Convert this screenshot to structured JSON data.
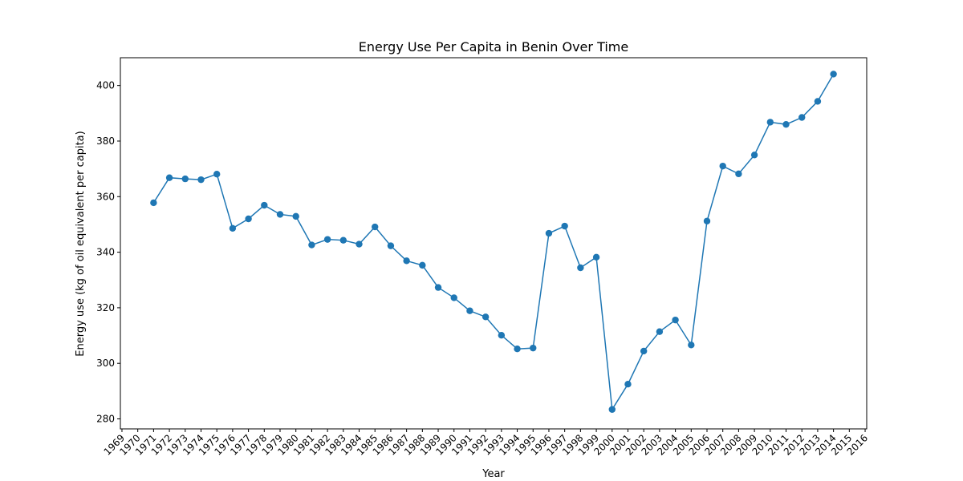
{
  "chart_data": {
    "type": "line",
    "title": "Energy Use Per Capita in Benin Over Time",
    "xlabel": "Year",
    "ylabel": "Energy use (kg of oil equivalent per capita)",
    "xlim": [
      1968.9,
      2016.1
    ],
    "ylim": [
      276.4,
      410.0
    ],
    "x_ticks": [
      1969,
      1970,
      1971,
      1972,
      1973,
      1974,
      1975,
      1976,
      1977,
      1978,
      1979,
      1980,
      1981,
      1982,
      1983,
      1984,
      1985,
      1986,
      1987,
      1988,
      1989,
      1990,
      1991,
      1992,
      1993,
      1994,
      1995,
      1996,
      1997,
      1998,
      1999,
      2000,
      2001,
      2002,
      2003,
      2004,
      2005,
      2006,
      2007,
      2008,
      2009,
      2010,
      2011,
      2012,
      2013,
      2014,
      2015,
      2016
    ],
    "y_ticks": [
      280,
      300,
      320,
      340,
      360,
      380,
      400
    ],
    "grid": false,
    "marker": "circle",
    "color": "#1f77b4",
    "series": [
      {
        "x": [
          1971,
          1972,
          1973,
          1974,
          1975,
          1976,
          1977,
          1978,
          1979,
          1980,
          1981,
          1982,
          1983,
          1984,
          1985,
          1986,
          1987,
          1988,
          1989,
          1990,
          1991,
          1992,
          1993,
          1994,
          1995,
          1996,
          1997,
          1998,
          1999,
          2000,
          2001,
          2002,
          2003,
          2004,
          2005,
          2006,
          2007,
          2008,
          2009,
          2010,
          2011,
          2012,
          2013,
          2014
        ],
        "values": [
          357.8,
          366.8,
          366.4,
          366.1,
          368.1,
          348.6,
          352.0,
          356.9,
          353.6,
          352.9,
          342.6,
          344.6,
          344.3,
          342.9,
          349.1,
          342.3,
          336.9,
          335.3,
          327.3,
          323.6,
          318.9,
          316.7,
          310.1,
          305.2,
          305.5,
          346.8,
          349.4,
          334.4,
          338.2,
          283.4,
          292.5,
          304.4,
          311.4,
          315.6,
          306.6,
          351.2,
          371.0,
          368.2,
          375.0,
          386.8,
          386.0,
          388.5,
          394.3,
          404.1
        ]
      }
    ]
  }
}
